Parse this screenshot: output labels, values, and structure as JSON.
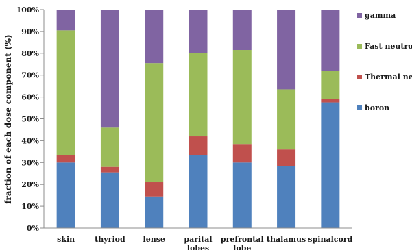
{
  "chart_data": {
    "type": "bar",
    "stacked": "percent",
    "ylabel": "fraction of each dose component (%)",
    "ylim": [
      0,
      100
    ],
    "yticks": [
      "0%",
      "10%",
      "20%",
      "30%",
      "40%",
      "50%",
      "60%",
      "70%",
      "80%",
      "90%",
      "100%"
    ],
    "categories": [
      "skin",
      "thyriod",
      "lense",
      "parital lobes",
      "prefrontal lobe",
      "thalamus",
      "spinalcord"
    ],
    "series": [
      {
        "name": "boron",
        "color": "#4f81bd",
        "values": [
          30,
          25.5,
          14.5,
          33.5,
          30,
          28.5,
          57.5
        ]
      },
      {
        "name": "Thermal neutron",
        "color": "#c0504d",
        "values": [
          3.5,
          2.5,
          6.5,
          8.5,
          8.5,
          7.5,
          1.5
        ]
      },
      {
        "name": "Fast neutron",
        "color": "#9bbb59",
        "values": [
          57,
          18,
          54.5,
          38,
          43,
          27.5,
          13
        ]
      },
      {
        "name": "gamma",
        "color": "#8064a2",
        "values": [
          9.5,
          54,
          24.5,
          20,
          18.5,
          36.5,
          28
        ]
      }
    ],
    "legend_order": [
      "gamma",
      "Fast neutron",
      "Thermal neutron",
      "boron"
    ],
    "legend": "right",
    "grid": false
  }
}
